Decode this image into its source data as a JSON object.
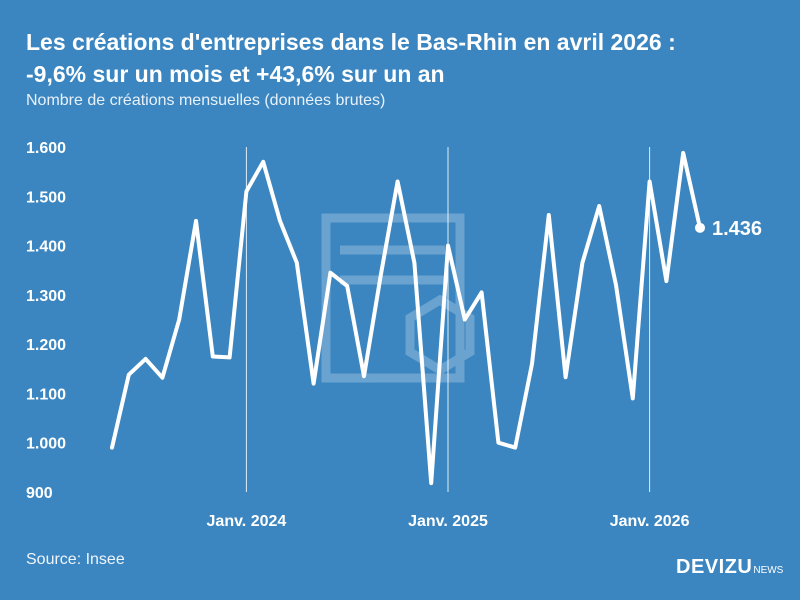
{
  "header": {
    "title_line1": "Les créations d'entreprises dans le Bas-Rhin en avril 2026 :",
    "title_line2": "-9,6% sur un mois et +43,6% sur un an",
    "subtitle": "Nombre de créations mensuelles (données brutes)"
  },
  "footer": {
    "source": "Source: Insee",
    "brand": "DEVIZU",
    "brand_sub": "NEWS"
  },
  "colors": {
    "background": "#3B86C0",
    "line": "#ffffff",
    "watermark": "#7FB0D8"
  },
  "chart_data": {
    "type": "line",
    "title": "Les créations d'entreprises dans le Bas-Rhin en avril 2026 : -9,6% sur un mois et +43,6% sur un an",
    "subtitle": "Nombre de créations mensuelles (données brutes)",
    "ylim": [
      900,
      1600
    ],
    "yticks": [
      900,
      1000,
      1100,
      1200,
      1300,
      1400,
      1500,
      1600
    ],
    "ytick_labels": [
      "900",
      "1.000",
      "1.100",
      "1.200",
      "1.300",
      "1.400",
      "1.500",
      "1.600"
    ],
    "xtick_labels": [
      "Janv. 2024",
      "Janv. 2025",
      "Janv. 2026"
    ],
    "xtick_dates": [
      "2024-01",
      "2025-01",
      "2026-01"
    ],
    "grid": "vertical lines at January of each year",
    "x": [
      "2023-05",
      "2023-06",
      "2023-07",
      "2023-08",
      "2023-09",
      "2023-10",
      "2023-11",
      "2023-12",
      "2024-01",
      "2024-02",
      "2024-03",
      "2024-04",
      "2024-05",
      "2024-06",
      "2024-07",
      "2024-08",
      "2024-09",
      "2024-10",
      "2024-11",
      "2024-12",
      "2025-01",
      "2025-02",
      "2025-03",
      "2025-04",
      "2025-05",
      "2025-06",
      "2025-07",
      "2025-08",
      "2025-09",
      "2025-10",
      "2025-11",
      "2025-12",
      "2026-01",
      "2026-02",
      "2026-03",
      "2026-04"
    ],
    "series": [
      {
        "values": [
          990,
          1138,
          1170,
          1132,
          1250,
          1450,
          1175,
          1173,
          1510,
          1570,
          1450,
          1365,
          1120,
          1345,
          1318,
          1135,
          1340,
          1530,
          1365,
          918,
          1400,
          1250,
          1305,
          1000,
          990,
          1160,
          1462,
          1133,
          1365,
          1480,
          1320,
          1090,
          1530,
          1328,
          1588,
          1436
        ],
        "end_label": "1.436"
      }
    ]
  }
}
